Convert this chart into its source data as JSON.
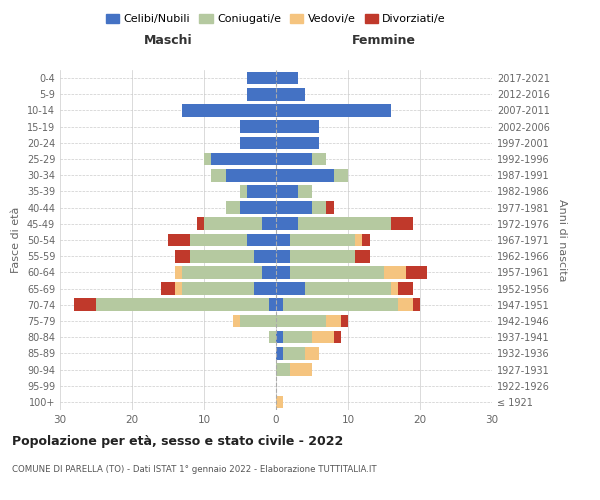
{
  "age_groups": [
    "100+",
    "95-99",
    "90-94",
    "85-89",
    "80-84",
    "75-79",
    "70-74",
    "65-69",
    "60-64",
    "55-59",
    "50-54",
    "45-49",
    "40-44",
    "35-39",
    "30-34",
    "25-29",
    "20-24",
    "15-19",
    "10-14",
    "5-9",
    "0-4"
  ],
  "birth_years": [
    "≤ 1921",
    "1922-1926",
    "1927-1931",
    "1932-1936",
    "1937-1941",
    "1942-1946",
    "1947-1951",
    "1952-1956",
    "1957-1961",
    "1962-1966",
    "1967-1971",
    "1972-1976",
    "1977-1981",
    "1982-1986",
    "1987-1991",
    "1992-1996",
    "1997-2001",
    "2002-2006",
    "2007-2011",
    "2012-2016",
    "2017-2021"
  ],
  "males": {
    "celibi": [
      0,
      0,
      0,
      0,
      0,
      0,
      1,
      3,
      2,
      3,
      4,
      2,
      5,
      4,
      7,
      9,
      5,
      5,
      13,
      4,
      4
    ],
    "coniugati": [
      0,
      0,
      0,
      0,
      1,
      5,
      24,
      10,
      11,
      9,
      8,
      8,
      2,
      1,
      2,
      1,
      0,
      0,
      0,
      0,
      0
    ],
    "vedovi": [
      0,
      0,
      0,
      0,
      0,
      1,
      0,
      1,
      1,
      0,
      0,
      0,
      0,
      0,
      0,
      0,
      0,
      0,
      0,
      0,
      0
    ],
    "divorziati": [
      0,
      0,
      0,
      0,
      0,
      0,
      3,
      2,
      0,
      2,
      3,
      1,
      0,
      0,
      0,
      0,
      0,
      0,
      0,
      0,
      0
    ]
  },
  "females": {
    "nubili": [
      0,
      0,
      0,
      1,
      1,
      0,
      1,
      4,
      2,
      2,
      2,
      3,
      5,
      3,
      8,
      5,
      6,
      6,
      16,
      4,
      3
    ],
    "coniugate": [
      0,
      0,
      2,
      3,
      4,
      7,
      16,
      12,
      13,
      9,
      9,
      13,
      2,
      2,
      2,
      2,
      0,
      0,
      0,
      0,
      0
    ],
    "vedove": [
      1,
      0,
      3,
      2,
      3,
      2,
      2,
      1,
      3,
      0,
      1,
      0,
      0,
      0,
      0,
      0,
      0,
      0,
      0,
      0,
      0
    ],
    "divorziate": [
      0,
      0,
      0,
      0,
      1,
      1,
      1,
      2,
      3,
      2,
      1,
      3,
      1,
      0,
      0,
      0,
      0,
      0,
      0,
      0,
      0
    ]
  },
  "colors": {
    "celibi": "#4472c4",
    "coniugati": "#b5c9a0",
    "vedovi": "#f5c47f",
    "divorziati": "#c0392b"
  },
  "title": "Popolazione per età, sesso e stato civile - 2022",
  "subtitle": "COMUNE DI PARELLA (TO) - Dati ISTAT 1° gennaio 2022 - Elaborazione TUTTITALIA.IT",
  "xlabel_left": "Maschi",
  "xlabel_right": "Femmine",
  "ylabel_left": "Fasce di età",
  "ylabel_right": "Anni di nascita",
  "xlim": 30,
  "legend_labels": [
    "Celibi/Nubili",
    "Coniugati/e",
    "Vedovi/e",
    "Divorziati/e"
  ]
}
